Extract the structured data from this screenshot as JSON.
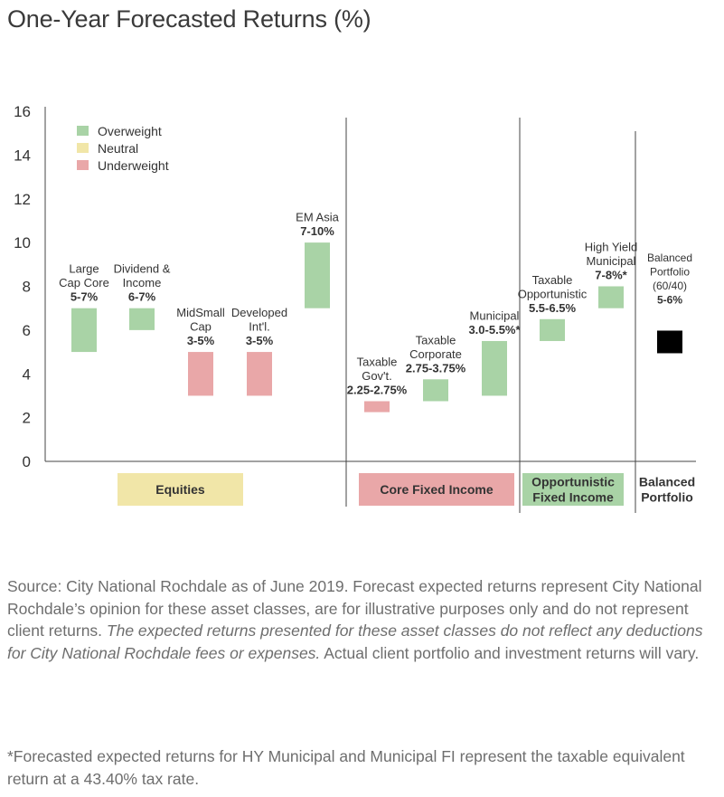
{
  "title": "One-Year Forecasted Returns (%)",
  "colors": {
    "overweight": "#a9d3a6",
    "neutral": "#f1e6a8",
    "underweight": "#e9a7a8",
    "balanced": "#000000",
    "axis": "#444444"
  },
  "chart_data": {
    "type": "bar",
    "subtype": "floating-range",
    "ylim": [
      0,
      16
    ],
    "yticks": [
      0,
      2,
      4,
      6,
      8,
      10,
      12,
      14,
      16
    ],
    "grid": false,
    "legend_position": "top-left",
    "legend": [
      {
        "name": "Overweight",
        "color_key": "overweight"
      },
      {
        "name": "Neutral",
        "color_key": "neutral"
      },
      {
        "name": "Underweight",
        "color_key": "underweight"
      }
    ],
    "bars": [
      {
        "label": [
          "Large",
          "Cap Core",
          "5-7%"
        ],
        "low": 5,
        "high": 7,
        "rating": "overweight",
        "group": 0
      },
      {
        "label": [
          "Dividend &",
          "Income",
          "6-7%"
        ],
        "low": 6,
        "high": 7,
        "rating": "overweight",
        "group": 0
      },
      {
        "label": [
          "MidSmall",
          "Cap",
          "3-5%"
        ],
        "low": 3,
        "high": 5,
        "rating": "underweight",
        "group": 0
      },
      {
        "label": [
          "Developed",
          "Int'l.",
          "3-5%"
        ],
        "low": 3,
        "high": 5,
        "rating": "underweight",
        "group": 0
      },
      {
        "label": [
          "EM Asia",
          "7-10%"
        ],
        "low": 7,
        "high": 10,
        "rating": "overweight",
        "group": 0
      },
      {
        "label": [
          "Taxable",
          "Gov't.",
          "2.25-2.75%"
        ],
        "low": 2.25,
        "high": 2.75,
        "rating": "underweight",
        "group": 1
      },
      {
        "label": [
          "Taxable",
          "Corporate",
          "2.75-3.75%"
        ],
        "low": 2.75,
        "high": 3.75,
        "rating": "overweight",
        "group": 1
      },
      {
        "label": [
          "Municipal",
          "3.0-5.5%*"
        ],
        "low": 3.0,
        "high": 5.5,
        "rating": "overweight",
        "group": 1
      },
      {
        "label": [
          "Taxable",
          "Opportunistic",
          "5.5-6.5%"
        ],
        "low": 5.5,
        "high": 6.5,
        "rating": "overweight",
        "group": 2
      },
      {
        "label": [
          "High Yield",
          "Municipal",
          "7-8%*"
        ],
        "low": 7,
        "high": 8,
        "rating": "overweight",
        "group": 2
      },
      {
        "label": [
          "Balanced",
          "Portfolio",
          "(60/40)",
          "5-6%"
        ],
        "low": 5,
        "high": 6,
        "rating": "balanced",
        "group": 3
      }
    ],
    "groups": [
      {
        "name": [
          "Equities"
        ],
        "color_key": "neutral"
      },
      {
        "name": [
          "Core Fixed Income"
        ],
        "color_key": "underweight"
      },
      {
        "name": [
          "Opportunistic",
          "Fixed Income"
        ],
        "color_key": "overweight"
      },
      {
        "name": [
          "Balanced",
          "Portfolio"
        ],
        "color_key": null
      }
    ]
  },
  "source": {
    "p1": "Source: City National Rochdale as of June 2019. Forecast expected returns represent City National Rochdale’s opinion for these asset classes, are for illus­trative purposes only and do not represent client returns. ",
    "p1_italic": "The expected returns presented for these asset classes do not reflect any deductions for City National Rochdale fees or expenses.",
    "p1_end": " Actual client portfolio and investment returns will vary.",
    "footnote": "*Forecasted expected returns for HY Municipal and Municipal FI represent the taxable equivalent return at a 43.40% tax rate."
  }
}
